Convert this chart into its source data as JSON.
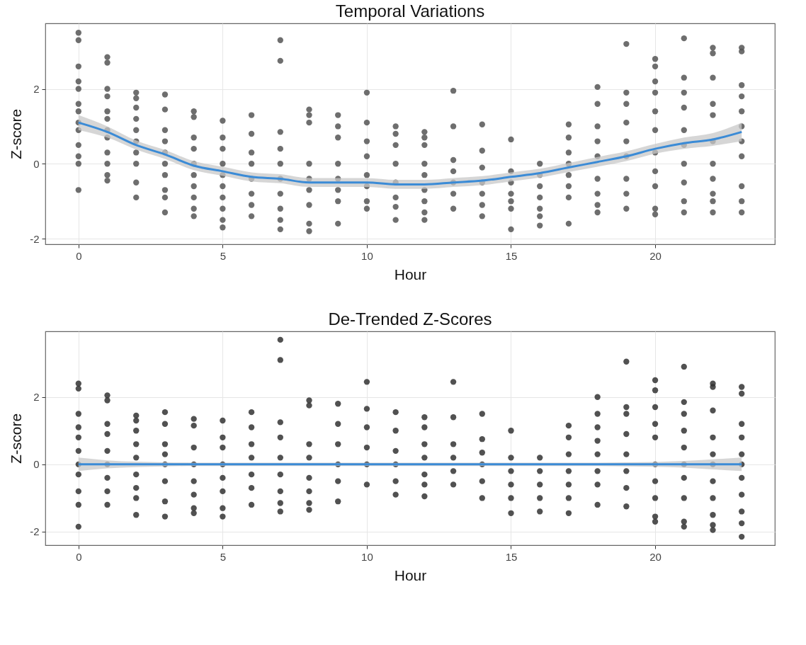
{
  "chart_data": [
    {
      "type": "scatter",
      "title": "Temporal Variations",
      "xlabel": "Hour",
      "ylabel": "Z-score",
      "xlim": [
        -1.15,
        24.15
      ],
      "xticks": [
        0,
        5,
        10,
        15,
        20
      ],
      "ylim": [
        -2.15,
        3.75
      ],
      "yticks": [
        -2,
        0,
        2
      ],
      "grid": true,
      "series": [
        {
          "marker": "circle",
          "color": "#555555",
          "x": [
            0,
            0,
            0,
            0,
            0,
            0,
            0,
            0,
            0,
            0,
            0,
            0,
            0,
            1,
            1,
            1,
            1,
            1,
            1,
            1,
            1,
            1,
            1,
            1,
            1,
            2,
            2,
            2,
            2,
            2,
            2,
            2,
            2,
            2,
            2,
            3,
            3,
            3,
            3,
            3,
            3,
            3,
            3,
            3,
            3,
            4,
            4,
            4,
            4,
            4,
            4,
            4,
            4,
            4,
            4,
            5,
            5,
            5,
            5,
            5,
            5,
            5,
            5,
            5,
            5,
            6,
            6,
            6,
            6,
            6,
            6,
            6,
            6,
            7,
            7,
            7,
            7,
            7,
            7,
            7,
            7,
            7,
            7,
            8,
            8,
            8,
            8,
            8,
            8,
            8,
            8,
            8,
            9,
            9,
            9,
            9,
            9,
            9,
            9,
            9,
            10,
            10,
            10,
            10,
            10,
            10,
            10,
            10,
            11,
            11,
            11,
            11,
            11,
            11,
            11,
            11,
            12,
            12,
            12,
            12,
            12,
            12,
            12,
            12,
            12,
            13,
            13,
            13,
            13,
            13,
            13,
            13,
            14,
            14,
            14,
            14,
            14,
            14,
            14,
            15,
            15,
            15,
            15,
            15,
            15,
            15,
            16,
            16,
            16,
            16,
            16,
            16,
            16,
            17,
            17,
            17,
            17,
            17,
            17,
            17,
            17,
            18,
            18,
            18,
            18,
            18,
            18,
            18,
            18,
            18,
            19,
            19,
            19,
            19,
            19,
            19,
            19,
            19,
            19,
            20,
            20,
            20,
            20,
            20,
            20,
            20,
            20,
            20,
            20,
            20,
            21,
            21,
            21,
            21,
            21,
            21,
            21,
            21,
            21,
            21,
            22,
            22,
            22,
            22,
            22,
            22,
            22,
            22,
            22,
            22,
            22,
            23,
            23,
            23,
            23,
            23,
            23,
            23,
            23,
            23,
            23,
            23
          ],
          "values": [
            3.5,
            3.3,
            2.6,
            2.2,
            2.0,
            1.6,
            1.4,
            1.1,
            0.9,
            0.5,
            0.2,
            0.0,
            -0.7,
            2.85,
            2.7,
            2.0,
            1.8,
            1.4,
            1.2,
            0.9,
            0.7,
            0.3,
            0.0,
            -0.3,
            -0.45,
            1.9,
            1.75,
            1.5,
            1.2,
            0.9,
            0.6,
            0.3,
            0.0,
            -0.5,
            -0.9,
            1.85,
            1.45,
            0.9,
            0.6,
            0.3,
            0.0,
            -0.3,
            -0.7,
            -0.9,
            -1.3,
            1.4,
            1.25,
            0.7,
            0.4,
            0.0,
            -0.3,
            -0.6,
            -0.9,
            -1.2,
            -1.4,
            1.15,
            0.7,
            0.4,
            0.0,
            -0.3,
            -0.6,
            -0.9,
            -1.2,
            -1.5,
            -1.7,
            1.3,
            0.8,
            0.3,
            0.0,
            -0.4,
            -0.8,
            -1.1,
            -1.4,
            3.3,
            2.75,
            0.85,
            0.4,
            0.0,
            -0.4,
            -0.8,
            -1.2,
            -1.5,
            -1.75,
            1.45,
            1.3,
            1.1,
            0.0,
            -0.4,
            -0.7,
            -1.1,
            -1.6,
            -1.8,
            1.3,
            1.0,
            0.7,
            0.0,
            -0.4,
            -0.7,
            -1.0,
            -1.6,
            1.9,
            1.1,
            0.6,
            0.2,
            -0.3,
            -0.6,
            -1.0,
            -1.2,
            1.0,
            0.8,
            0.5,
            0.0,
            -0.5,
            -0.9,
            -1.15,
            -1.5,
            0.85,
            0.7,
            0.5,
            0.0,
            -0.3,
            -0.7,
            -1.0,
            -1.3,
            -1.5,
            1.95,
            1.0,
            0.1,
            -0.2,
            -0.5,
            -0.8,
            -1.2,
            1.05,
            0.35,
            -0.1,
            -0.5,
            -0.8,
            -1.1,
            -1.4,
            0.65,
            -0.2,
            -0.5,
            -0.8,
            -1.0,
            -1.2,
            -1.75,
            0.0,
            -0.3,
            -0.6,
            -0.9,
            -1.2,
            -1.4,
            -1.65,
            1.05,
            0.7,
            0.3,
            0.0,
            -0.3,
            -0.6,
            -0.9,
            -1.6,
            2.05,
            1.6,
            1.0,
            0.6,
            0.2,
            -0.4,
            -0.8,
            -1.1,
            -1.3,
            3.2,
            1.9,
            1.6,
            1.1,
            0.6,
            0.2,
            -0.4,
            -0.8,
            -1.2,
            2.8,
            2.6,
            2.2,
            1.9,
            1.4,
            0.9,
            0.3,
            -0.2,
            -0.6,
            -1.2,
            -1.35,
            3.35,
            2.3,
            1.9,
            1.5,
            0.9,
            0.5,
            0.0,
            -0.5,
            -1.0,
            -1.3,
            3.1,
            2.95,
            2.3,
            1.6,
            1.3,
            0.6,
            0.0,
            -0.4,
            -0.8,
            -1.0,
            -1.3,
            3.1,
            3.0,
            2.1,
            1.8,
            1.4,
            1.0,
            0.6,
            0.2,
            -0.6,
            -1.0,
            -1.3
          ]
        },
        {
          "type": "line",
          "color": "#3b8bd6",
          "x": [
            0,
            1,
            2,
            3,
            4,
            5,
            6,
            7,
            8,
            9,
            10,
            11,
            12,
            13,
            14,
            15,
            16,
            17,
            18,
            19,
            20,
            21,
            22,
            23
          ],
          "values": [
            1.1,
            0.85,
            0.5,
            0.25,
            -0.05,
            -0.2,
            -0.35,
            -0.4,
            -0.5,
            -0.5,
            -0.5,
            -0.55,
            -0.55,
            -0.5,
            -0.45,
            -0.35,
            -0.25,
            -0.1,
            0.05,
            0.2,
            0.4,
            0.55,
            0.65,
            0.85
          ],
          "lower": [
            0.9,
            0.7,
            0.38,
            0.13,
            -0.17,
            -0.32,
            -0.47,
            -0.52,
            -0.62,
            -0.62,
            -0.62,
            -0.67,
            -0.67,
            -0.62,
            -0.57,
            -0.47,
            -0.37,
            -0.22,
            -0.08,
            0.07,
            0.27,
            0.4,
            0.48,
            0.6
          ],
          "upper": [
            1.3,
            1.0,
            0.62,
            0.37,
            0.07,
            -0.08,
            -0.23,
            -0.28,
            -0.38,
            -0.38,
            -0.38,
            -0.43,
            -0.43,
            -0.38,
            -0.33,
            -0.23,
            -0.13,
            0.02,
            0.18,
            0.33,
            0.53,
            0.7,
            0.82,
            1.1
          ]
        }
      ]
    },
    {
      "type": "scatter",
      "title": "De-Trended Z-Scores",
      "xlabel": "Hour",
      "ylabel": "Z-score",
      "xlim": [
        -1.15,
        24.15
      ],
      "xticks": [
        0,
        5,
        10,
        15,
        20
      ],
      "ylim": [
        -2.4,
        3.95
      ],
      "yticks": [
        -2,
        0,
        2
      ],
      "grid": true,
      "series": [
        {
          "marker": "circle",
          "color": "#333333",
          "x": [
            0,
            0,
            0,
            0,
            0,
            0,
            0,
            0,
            0,
            0,
            0,
            1,
            1,
            1,
            1,
            1,
            1,
            1,
            1,
            1,
            2,
            2,
            2,
            2,
            2,
            2,
            2,
            2,
            2,
            3,
            3,
            3,
            3,
            3,
            3,
            3,
            3,
            4,
            4,
            4,
            4,
            4,
            4,
            4,
            4,
            5,
            5,
            5,
            5,
            5,
            5,
            5,
            5,
            6,
            6,
            6,
            6,
            6,
            6,
            6,
            7,
            7,
            7,
            7,
            7,
            7,
            7,
            7,
            7,
            8,
            8,
            8,
            8,
            8,
            8,
            8,
            8,
            9,
            9,
            9,
            9,
            9,
            9,
            10,
            10,
            10,
            10,
            10,
            10,
            11,
            11,
            11,
            11,
            11,
            11,
            12,
            12,
            12,
            12,
            12,
            12,
            12,
            13,
            13,
            13,
            13,
            13,
            13,
            14,
            14,
            14,
            14,
            14,
            14,
            15,
            15,
            15,
            15,
            15,
            15,
            16,
            16,
            16,
            16,
            16,
            17,
            17,
            17,
            17,
            17,
            17,
            17,
            18,
            18,
            18,
            18,
            18,
            18,
            18,
            18,
            19,
            19,
            19,
            19,
            19,
            19,
            19,
            19,
            20,
            20,
            20,
            20,
            20,
            20,
            20,
            20,
            20,
            20,
            21,
            21,
            21,
            21,
            21,
            21,
            21,
            21,
            21,
            21,
            22,
            22,
            22,
            22,
            22,
            22,
            22,
            22,
            22,
            22,
            22,
            23,
            23,
            23,
            23,
            23,
            23,
            23,
            23,
            23,
            23,
            23
          ],
          "values": [
            2.4,
            2.25,
            1.5,
            1.1,
            0.8,
            0.4,
            0.0,
            -0.3,
            -0.8,
            -1.2,
            -1.85,
            2.05,
            1.9,
            1.2,
            0.9,
            0.4,
            0.0,
            -0.4,
            -0.8,
            -1.2,
            1.45,
            1.3,
            1.0,
            0.6,
            0.2,
            -0.3,
            -0.7,
            -1.0,
            -1.5,
            1.55,
            1.2,
            0.6,
            0.3,
            0.0,
            -0.5,
            -1.1,
            -1.55,
            1.35,
            1.15,
            0.5,
            0.0,
            -0.5,
            -0.9,
            -1.3,
            -1.45,
            1.3,
            0.8,
            0.5,
            0.0,
            -0.4,
            -0.8,
            -1.3,
            -1.55,
            1.55,
            1.1,
            0.6,
            0.2,
            -0.3,
            -0.7,
            -1.2,
            3.7,
            3.1,
            1.25,
            0.8,
            0.2,
            -0.3,
            -0.8,
            -1.15,
            -1.4,
            1.9,
            1.75,
            0.6,
            0.2,
            -0.4,
            -0.8,
            -1.15,
            -1.35,
            1.8,
            1.2,
            0.6,
            0.0,
            -0.5,
            -1.1,
            2.45,
            1.65,
            1.1,
            0.5,
            0.0,
            -0.6,
            1.55,
            1.0,
            0.4,
            0.0,
            -0.5,
            -0.9,
            1.4,
            1.1,
            0.6,
            0.2,
            -0.3,
            -0.6,
            -0.95,
            2.45,
            1.4,
            0.6,
            0.2,
            -0.2,
            -0.6,
            1.5,
            0.75,
            0.35,
            0.0,
            -0.5,
            -1.0,
            1.0,
            0.2,
            -0.2,
            -0.6,
            -1.0,
            -1.45,
            0.2,
            -0.2,
            -0.6,
            -1.0,
            -1.4,
            1.15,
            0.8,
            0.3,
            -0.2,
            -0.6,
            -1.0,
            -1.45,
            2.0,
            1.5,
            1.1,
            0.7,
            0.3,
            -0.2,
            -0.6,
            -1.2,
            3.05,
            1.7,
            1.5,
            0.9,
            0.3,
            -0.2,
            -0.7,
            -1.25,
            2.5,
            2.2,
            1.7,
            1.2,
            0.8,
            0.0,
            -0.5,
            -1.0,
            -1.55,
            -1.7,
            2.9,
            1.85,
            1.5,
            1.0,
            0.5,
            0.0,
            -0.4,
            -1.0,
            -1.7,
            -1.85,
            2.4,
            2.3,
            1.6,
            0.8,
            0.3,
            0.0,
            -0.5,
            -1.0,
            -1.5,
            -1.8,
            -1.95,
            2.3,
            2.1,
            1.2,
            0.8,
            0.3,
            0.0,
            -0.4,
            -0.9,
            -1.4,
            -1.75,
            -2.15
          ]
        },
        {
          "type": "line",
          "color": "#3b8bd6",
          "x": [
            0,
            1,
            2,
            3,
            4,
            5,
            6,
            7,
            8,
            9,
            10,
            11,
            12,
            13,
            14,
            15,
            16,
            17,
            18,
            19,
            20,
            21,
            22,
            23
          ],
          "values": [
            0,
            0,
            0,
            0,
            0,
            0,
            0,
            0,
            0,
            0,
            0,
            0,
            0,
            0,
            0,
            0,
            0,
            0,
            0,
            0,
            0,
            0,
            0,
            0
          ],
          "lower": [
            -0.2,
            -0.12,
            -0.08,
            -0.06,
            -0.05,
            -0.05,
            -0.05,
            -0.05,
            -0.05,
            -0.05,
            -0.05,
            -0.05,
            -0.05,
            -0.05,
            -0.05,
            -0.05,
            -0.05,
            -0.05,
            -0.05,
            -0.06,
            -0.07,
            -0.1,
            -0.15,
            -0.2
          ],
          "upper": [
            0.2,
            0.12,
            0.08,
            0.06,
            0.05,
            0.05,
            0.05,
            0.05,
            0.05,
            0.05,
            0.05,
            0.05,
            0.05,
            0.05,
            0.05,
            0.05,
            0.05,
            0.05,
            0.05,
            0.06,
            0.07,
            0.1,
            0.15,
            0.2
          ]
        }
      ]
    }
  ]
}
